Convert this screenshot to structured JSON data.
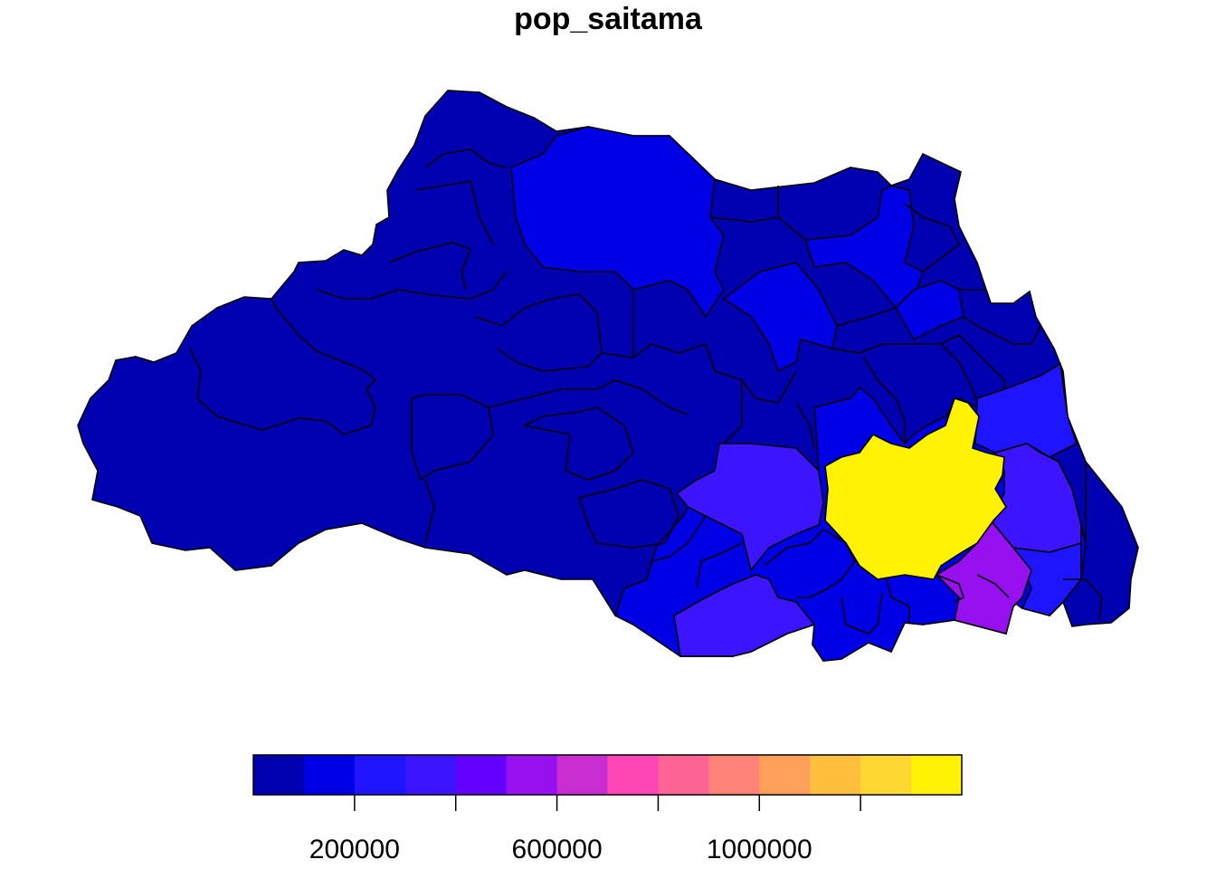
{
  "title": "pop_saitama",
  "map": {
    "region": "Saitama Prefecture municipalities",
    "variable": "pop_saitama",
    "highlight": {
      "max_color": "#FFF205"
    },
    "border_color": "#000000"
  },
  "legend": {
    "type": "continuous-color-bar",
    "range": [
      0,
      1400000
    ],
    "ticks": [
      {
        "value": 200000,
        "label": "200000"
      },
      {
        "value": 400000,
        "label": ""
      },
      {
        "value": 600000,
        "label": "600000"
      },
      {
        "value": 800000,
        "label": ""
      },
      {
        "value": 1000000,
        "label": "1000000"
      },
      {
        "value": 1200000,
        "label": ""
      }
    ],
    "colors": [
      "#0000B0",
      "#0000E6",
      "#1E14FF",
      "#3C14FF",
      "#6400FF",
      "#9610F0",
      "#C82DD2",
      "#FF46B4",
      "#FF6496",
      "#FF8278",
      "#FFA05A",
      "#FFBE3C",
      "#FFD732",
      "#FFF205"
    ]
  }
}
